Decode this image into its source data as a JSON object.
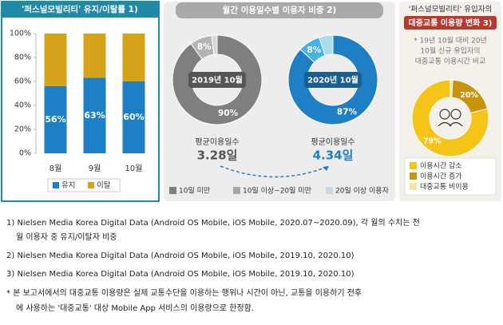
{
  "chart_data": [
    {
      "type": "bar",
      "stacked": true,
      "title": "'퍼스널모빌리티' 유지/이탈률 1)",
      "categories": [
        "8월",
        "9월",
        "10월"
      ],
      "series": [
        {
          "name": "유지",
          "color": "#1f7fc4",
          "values": [
            56,
            63,
            60
          ],
          "value_labels": [
            "56%",
            "63%",
            "60%"
          ]
        },
        {
          "name": "이탈",
          "color": "#d4a31a",
          "values": [
            44,
            37,
            40
          ]
        }
      ],
      "ylim": [
        0,
        100
      ],
      "yticks": [
        {
          "value": 0,
          "label": "0%"
        },
        {
          "value": 20,
          "label": "20%"
        },
        {
          "value": 40,
          "label": "40%"
        },
        {
          "value": 60,
          "label": "60%"
        },
        {
          "value": 80,
          "label": "80%"
        },
        {
          "value": 100,
          "label": "100%"
        }
      ]
    },
    {
      "type": "donut",
      "title": "월간 이용일수별 이용자 비중 2)",
      "categories": [
        "10일 미만",
        "10일 이상~20일 미만",
        "20일 이상 이용자"
      ],
      "legend_colors": [
        "#7f7f7f",
        "#a6a6a6",
        "#c9d9e6"
      ],
      "average_title": "평균이용일수",
      "pies": [
        {
          "label": "2019년 10월",
          "colors": [
            "#7f7f7f",
            "#b3b3b3",
            "#d9d9d9"
          ],
          "values": [
            90,
            8,
            2
          ],
          "value_labels": [
            "90%",
            "8%",
            null
          ],
          "average": "3.28일"
        },
        {
          "label": "2020년 10월",
          "colors": [
            "#1f7fc4",
            "#45b3e6",
            "#a9dcf3"
          ],
          "values": [
            87,
            8,
            5
          ],
          "value_labels": [
            "87%",
            "8%",
            null
          ],
          "average": "4.34일"
        }
      ]
    },
    {
      "type": "donut",
      "title": [
        "'퍼스널모빌리티' 유입자의",
        "대중교통 이용량 변화 3)"
      ],
      "note": [
        "* 19년 10월 대비 20년",
        "10월 신규 유입자의",
        "대중교통 이용시간 비교"
      ],
      "categories": [
        "이용시간 감소",
        "이용시간 증가",
        "대중교통 비이용"
      ],
      "colors": [
        "#f6c419",
        "#c8940e",
        "#f9e3a6"
      ],
      "values": [
        79,
        20,
        1
      ],
      "value_labels": [
        "79%",
        "20%",
        null
      ]
    }
  ],
  "footnotes": [
    "1) Nielsen Media Korea Digital Data (Android OS Mobile, iOS Mobile, 2020.07~2020.09), 각 월의 수치는 전",
    "월 이용자 중 유지/이탈자 비중",
    "2) Nielsen Media Korea Digital Data (Android OS Mobile, iOS Mobile, 2019.10, 2020.10)",
    "3) Nielsen Media Korea Digital Data (Android OS Mobile, iOS Mobile, 2019.10, 2020.10)",
    "* 본 보고서에서의 대중교통 이용량은 실제 교통수단을 이용하는 행위나 시간이 아닌, 교통을 이용하기 전후",
    "에 사용하는 '대중교통' 대상 Mobile App 서비스의 이용량으로 한정함."
  ]
}
